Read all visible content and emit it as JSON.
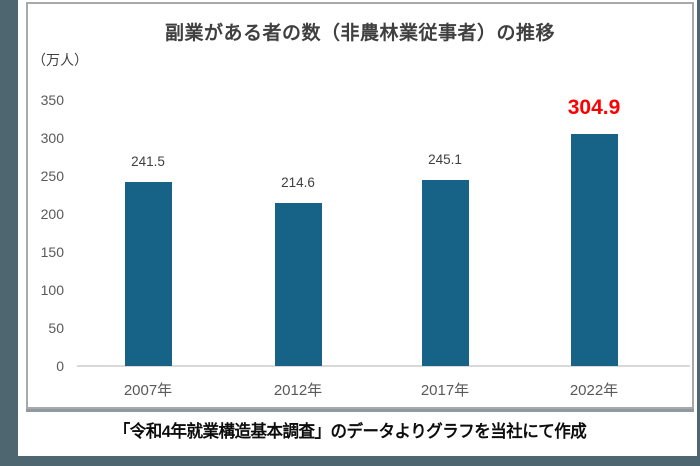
{
  "page": {
    "accent_color": "#4d666f",
    "caption": "「令和4年就業構造基本調査」のデータよりグラフを当社にて作成"
  },
  "chart_data": {
    "type": "bar",
    "title": "副業がある者の数（非農林業従事者）の推移",
    "unit_label": "（万人）",
    "categories": [
      "2007年",
      "2012年",
      "2017年",
      "2022年"
    ],
    "values": [
      241.5,
      214.6,
      245.1,
      304.9
    ],
    "value_labels": [
      "241.5",
      "214.6",
      "245.1",
      "304.9"
    ],
    "highlight_index": 3,
    "highlight_color": "#ff0000",
    "bar_color": "#176387",
    "label_color": "#404040",
    "axis_line_color": "#d9d9d9",
    "ylim": [
      0,
      350
    ],
    "yticks": [
      350,
      300,
      250,
      200,
      150,
      100,
      50,
      0
    ],
    "grid": "off",
    "legend": "none",
    "xlabel": "",
    "ylabel": ""
  }
}
